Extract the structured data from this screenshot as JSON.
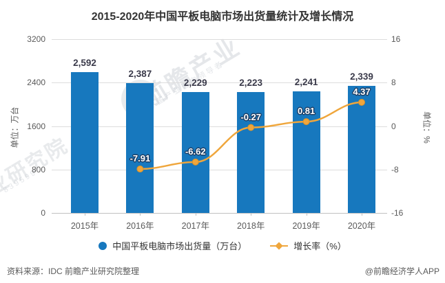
{
  "title": "2015-2020年中国平板电脑市场出货量统计及增长情况",
  "chart_data": {
    "type": "bar",
    "categories": [
      "2015年",
      "2016年",
      "2017年",
      "2018年",
      "2019年",
      "2020年"
    ],
    "series": [
      {
        "name": "中国平板电脑市场出货量（万台）",
        "type": "bar",
        "axis": "left",
        "values": [
          2592,
          2387,
          2229,
          2223,
          2241,
          2339
        ],
        "labels": [
          "2,592",
          "2,387",
          "2,229",
          "2,223",
          "2,241",
          "2,339"
        ]
      },
      {
        "name": "增长率（%）",
        "type": "line",
        "axis": "right",
        "values": [
          null,
          -7.91,
          -6.62,
          -0.27,
          0.81,
          4.37
        ],
        "labels": [
          "",
          "-7.91",
          "-6.62",
          "-0.27",
          "0.81",
          "4.37"
        ]
      }
    ],
    "left_axis": {
      "title": "单位：万台",
      "min": 0,
      "max": 3200,
      "ticks": [
        0,
        800,
        1600,
        2400,
        3200
      ]
    },
    "right_axis": {
      "title": "单位：%",
      "min": -16,
      "max": 16,
      "ticks": [
        -16,
        -8,
        0,
        8,
        16
      ]
    },
    "grid": true,
    "legend_position": "bottom"
  },
  "legend": {
    "bar_label": "中国平板电脑市场出货量（万台）",
    "line_label": "增长率（%）"
  },
  "footer": {
    "source": "资料来源：IDC 前瞻产业研究院整理",
    "credit": "@前瞻经济学人APP"
  },
  "watermark": {
    "logo_text": "前瞻产业",
    "sub_text": "中国产业咨询领导者",
    "left_text": "业研究院",
    "left_sub": "839599"
  },
  "colors": {
    "bar": "#1778be",
    "line": "#efa63c",
    "line_edge": "#de9226",
    "grid": "#dcdcdc",
    "axis_text": "#595959",
    "bar_label_text": "#3a3a4a",
    "title_text": "#333333"
  }
}
